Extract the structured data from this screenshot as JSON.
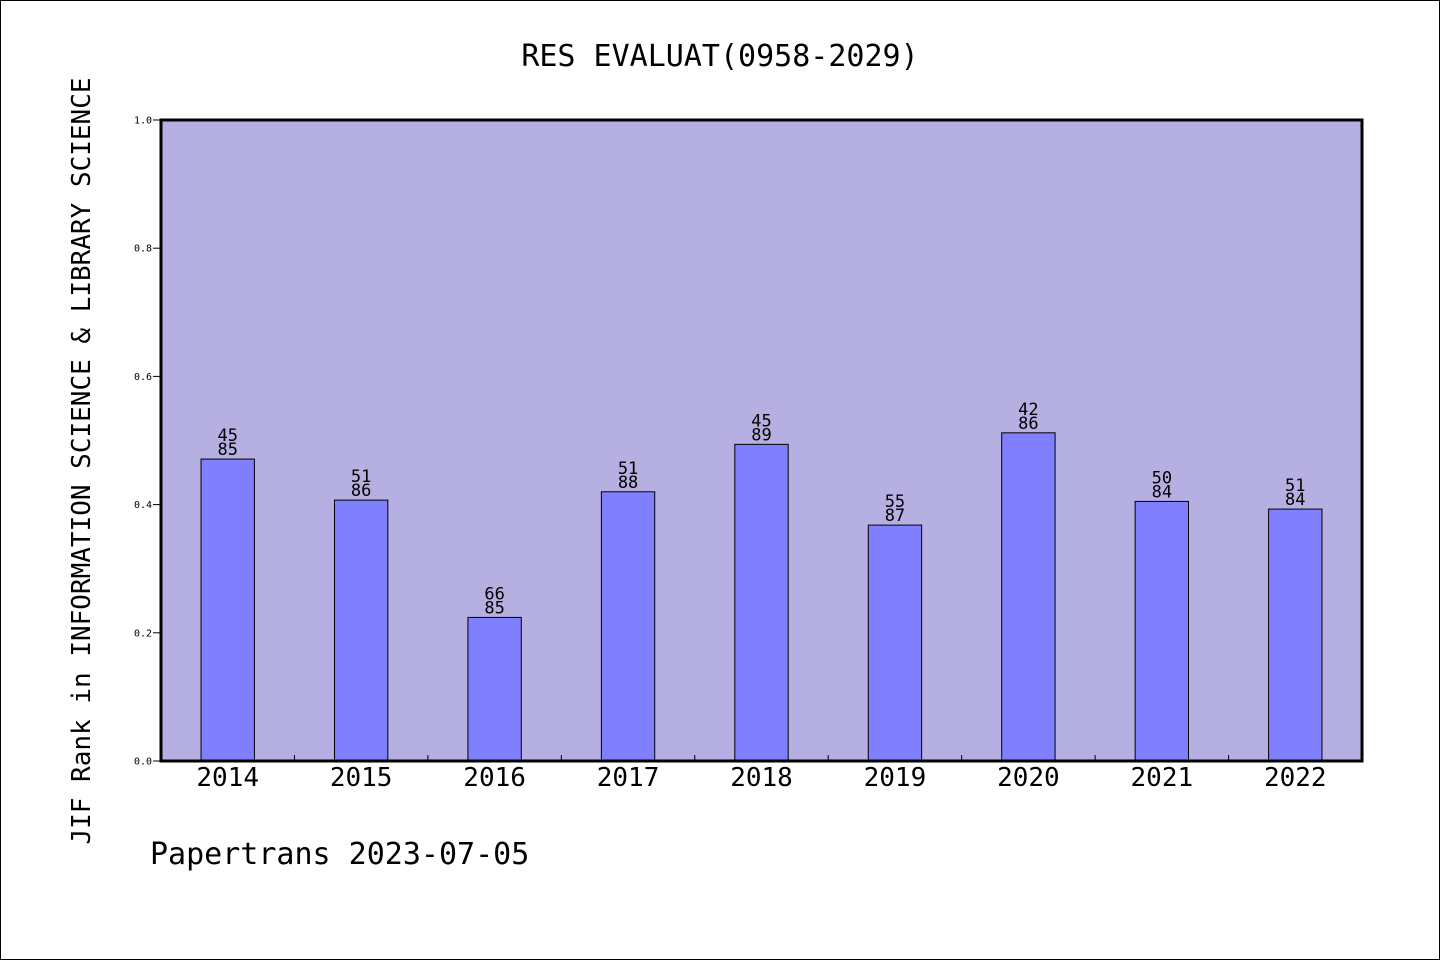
{
  "chart_data": {
    "type": "bar",
    "title": "RES EVALUAT(0958-2029)",
    "xlabel": "",
    "ylabel": "JIF Rank in INFORMATION SCIENCE & LIBRARY SCIENCE",
    "categories": [
      "2014",
      "2015",
      "2016",
      "2017",
      "2018",
      "2019",
      "2020",
      "2021",
      "2022"
    ],
    "values": [
      0.471,
      0.407,
      0.224,
      0.42,
      0.494,
      0.368,
      0.512,
      0.405,
      0.393
    ],
    "rank": [
      "45",
      "51",
      "66",
      "51",
      "45",
      "55",
      "42",
      "50",
      "51"
    ],
    "total": [
      "85",
      "86",
      "85",
      "88",
      "89",
      "87",
      "86",
      "84",
      "84"
    ],
    "ylim": [
      0,
      1.0
    ],
    "y_ticks": [
      "0.0",
      "0.2",
      "0.4",
      "0.6",
      "0.8",
      "1.0"
    ],
    "grid": false,
    "legend": "none",
    "plot_background": "#b6b0e2",
    "bar_color": "#8080ff"
  },
  "footer": "Papertrans 2023-07-05"
}
